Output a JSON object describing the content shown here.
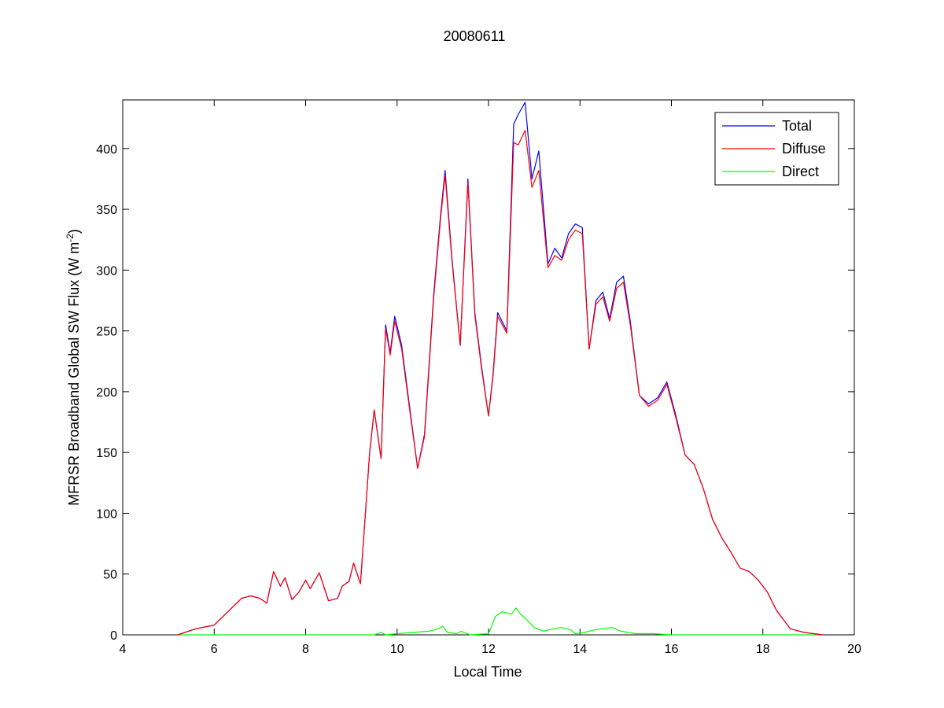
{
  "chart_data": {
    "type": "line",
    "title": "20080611",
    "xlabel": "Local Time",
    "ylabel": {
      "prefix": "MFRSR Broadband Global SW Flux (W m",
      "superscript": "-2",
      "suffix": ")"
    },
    "xlim": [
      4,
      20
    ],
    "ylim": [
      0,
      440
    ],
    "xticks": [
      4,
      6,
      8,
      10,
      12,
      14,
      16,
      18,
      20
    ],
    "yticks": [
      0,
      50,
      100,
      150,
      200,
      250,
      300,
      350,
      400
    ],
    "grid": false,
    "legend_position": "top-right",
    "series": [
      {
        "name": "Total",
        "color": "#0000ff",
        "x": [
          5.2,
          5.6,
          6.0,
          6.3,
          6.6,
          6.8,
          7.0,
          7.15,
          7.3,
          7.45,
          7.55,
          7.7,
          7.85,
          8.0,
          8.1,
          8.3,
          8.5,
          8.7,
          8.8,
          8.95,
          9.05,
          9.2,
          9.4,
          9.5,
          9.65,
          9.75,
          9.85,
          9.95,
          10.1,
          10.3,
          10.45,
          10.6,
          10.8,
          10.95,
          11.05,
          11.2,
          11.38,
          11.55,
          11.7,
          11.85,
          12.0,
          12.1,
          12.2,
          12.4,
          12.55,
          12.65,
          12.8,
          12.95,
          13.1,
          13.3,
          13.45,
          13.6,
          13.75,
          13.9,
          14.05,
          14.2,
          14.35,
          14.5,
          14.65,
          14.8,
          14.95,
          15.1,
          15.3,
          15.5,
          15.7,
          15.9,
          16.1,
          16.3,
          16.5,
          16.7,
          16.9,
          17.1,
          17.3,
          17.5,
          17.7,
          17.9,
          18.1,
          18.3,
          18.6,
          18.9,
          19.3
        ],
        "y": [
          0,
          5,
          8,
          19,
          30,
          32,
          30,
          26,
          52,
          40,
          47,
          29,
          35,
          45,
          38,
          51,
          28,
          30,
          40,
          44,
          59,
          42,
          150,
          185,
          145,
          255,
          232,
          262,
          238,
          180,
          137,
          165,
          280,
          345,
          382,
          310,
          238,
          375,
          265,
          220,
          180,
          215,
          265,
          250,
          420,
          428,
          438,
          375,
          398,
          305,
          318,
          310,
          330,
          338,
          335,
          235,
          275,
          282,
          260,
          290,
          295,
          258,
          197,
          190,
          195,
          208,
          180,
          148,
          140,
          120,
          95,
          80,
          68,
          55,
          52,
          45,
          35,
          20,
          5,
          2,
          0
        ]
      },
      {
        "name": "Diffuse",
        "color": "#ff0000",
        "x": [
          5.2,
          5.6,
          6.0,
          6.3,
          6.6,
          6.8,
          7.0,
          7.15,
          7.3,
          7.45,
          7.55,
          7.7,
          7.85,
          8.0,
          8.1,
          8.3,
          8.5,
          8.7,
          8.8,
          8.95,
          9.05,
          9.2,
          9.4,
          9.5,
          9.65,
          9.75,
          9.85,
          9.95,
          10.1,
          10.3,
          10.45,
          10.6,
          10.8,
          10.95,
          11.05,
          11.2,
          11.38,
          11.55,
          11.7,
          11.85,
          12.0,
          12.1,
          12.2,
          12.4,
          12.55,
          12.65,
          12.8,
          12.95,
          13.1,
          13.3,
          13.45,
          13.6,
          13.75,
          13.9,
          14.05,
          14.2,
          14.35,
          14.5,
          14.65,
          14.8,
          14.95,
          15.1,
          15.3,
          15.5,
          15.7,
          15.9,
          16.1,
          16.3,
          16.5,
          16.7,
          16.9,
          17.1,
          17.3,
          17.5,
          17.7,
          17.9,
          18.1,
          18.3,
          18.6,
          18.9,
          19.3
        ],
        "y": [
          0,
          5,
          8,
          19,
          30,
          32,
          30,
          26,
          52,
          40,
          47,
          29,
          35,
          45,
          38,
          51,
          28,
          30,
          40,
          44,
          59,
          42,
          150,
          185,
          145,
          252,
          230,
          258,
          235,
          178,
          137,
          163,
          277,
          342,
          378,
          308,
          238,
          372,
          263,
          218,
          180,
          213,
          262,
          248,
          405,
          403,
          415,
          368,
          382,
          302,
          312,
          308,
          325,
          333,
          330,
          235,
          272,
          278,
          258,
          285,
          290,
          255,
          197,
          188,
          193,
          206,
          178,
          148,
          140,
          120,
          95,
          80,
          68,
          55,
          52,
          45,
          35,
          20,
          5,
          2,
          0
        ]
      },
      {
        "name": "Direct",
        "color": "#00ff00",
        "x": [
          5.2,
          9.5,
          9.65,
          9.75,
          10.0,
          10.7,
          10.9,
          11.0,
          11.1,
          11.3,
          11.4,
          11.6,
          12.0,
          12.15,
          12.3,
          12.5,
          12.6,
          12.7,
          12.8,
          12.9,
          13.0,
          13.2,
          13.4,
          13.6,
          13.8,
          13.9,
          14.1,
          14.3,
          14.5,
          14.7,
          14.9,
          15.2,
          15.6,
          16.0,
          16.5,
          19.3
        ],
        "y": [
          0,
          0,
          2,
          0,
          1,
          3,
          5,
          7,
          2,
          1,
          3,
          0,
          1,
          15,
          19,
          17,
          22,
          17,
          14,
          10,
          6,
          3,
          5,
          6,
          4,
          1,
          2,
          4,
          5,
          6,
          3,
          1,
          1,
          0,
          0,
          0
        ]
      }
    ]
  }
}
